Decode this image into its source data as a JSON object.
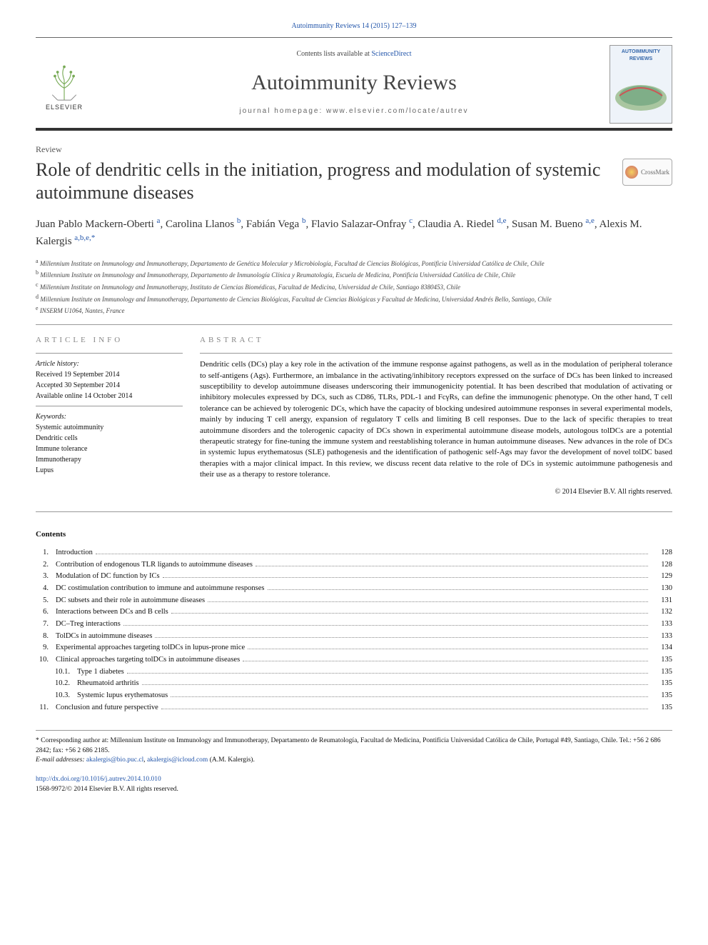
{
  "header": {
    "top_citation": "Autoimmunity Reviews 14 (2015) 127–139",
    "contents_available": "Contents lists available at ",
    "contents_link": "ScienceDirect",
    "journal": "Autoimmunity Reviews",
    "homepage_label": "journal homepage: www.elsevier.com/locate/autrev",
    "publisher_label": "ELSEVIER",
    "cover_thumb_title": "AUTOIMMUNITY REVIEWS"
  },
  "article": {
    "type": "Review",
    "title": "Role of dendritic cells in the initiation, progress and modulation of systemic autoimmune diseases",
    "crossmark_label": "CrossMark"
  },
  "authors_line_html": "Juan Pablo Mackern-Oberti <span class='aff'>a</span>, Carolina Llanos <span class='aff'>b</span>, Fabián Vega <span class='aff'>b</span>, Flavio Salazar-Onfray <span class='aff'>c</span>, Claudia A. Riedel <span class='aff'>d,e</span>, Susan M. Bueno <span class='aff'>a,e</span>, Alexis M. Kalergis <span class='aff'>a,b,e,</span><span class='aff'>*</span>",
  "affiliations": [
    {
      "key": "a",
      "text": "Millennium Institute on Immunology and Immunotherapy, Departamento de Genética Molecular y Microbiología, Facultad de Ciencias Biológicas, Pontificia Universidad Católica de Chile, Chile"
    },
    {
      "key": "b",
      "text": "Millennium Institute on Immunology and Immunotherapy, Departamento de Inmunología Clínica y Reumatología, Escuela de Medicina, Pontificia Universidad Católica de Chile, Chile"
    },
    {
      "key": "c",
      "text": "Millennium Institute on Immunology and Immunotherapy, Instituto de Ciencias Biomédicas, Facultad de Medicina, Universidad de Chile, Santiago 8380453, Chile"
    },
    {
      "key": "d",
      "text": "Millennium Institute on Immunology and Immunotherapy, Departamento de Ciencias Biológicas, Facultad de Ciencias Biológicas y Facultad de Medicina, Universidad Andrés Bello, Santiago, Chile"
    },
    {
      "key": "e",
      "text": "INSERM U1064, Nantes, France"
    }
  ],
  "article_info": {
    "heading": "ARTICLE INFO",
    "history_label": "Article history:",
    "received": "Received 19 September 2014",
    "accepted": "Accepted 30 September 2014",
    "online": "Available online 14 October 2014",
    "keywords_label": "Keywords:",
    "keywords": [
      "Systemic autoimmunity",
      "Dendritic cells",
      "Immune tolerance",
      "Immunotherapy",
      "Lupus"
    ]
  },
  "abstract": {
    "heading": "ABSTRACT",
    "text": "Dendritic cells (DCs) play a key role in the activation of the immune response against pathogens, as well as in the modulation of peripheral tolerance to self-antigens (Ags). Furthermore, an imbalance in the activating/inhibitory receptors expressed on the surface of DCs has been linked to increased susceptibility to develop autoimmune diseases underscoring their immunogenicity potential. It has been described that modulation of activating or inhibitory molecules expressed by DCs, such as CD86, TLRs, PDL-1 and FcγRs, can define the immunogenic phenotype. On the other hand, T cell tolerance can be achieved by tolerogenic DCs, which have the capacity of blocking undesired autoimmune responses in several experimental models, mainly by inducing T cell anergy, expansion of regulatory T cells and limiting B cell responses. Due to the lack of specific therapies to treat autoimmune disorders and the tolerogenic capacity of DCs shown in experimental autoimmune disease models, autologous tolDCs are a potential therapeutic strategy for fine-tuning the immune system and reestablishing tolerance in human autoimmune diseases. New advances in the role of DCs in systemic lupus erythematosus (SLE) pathogenesis and the identification of pathogenic self-Ags may favor the development of novel tolDC based therapies with a major clinical impact. In this review, we discuss recent data relative to the role of DCs in systemic autoimmune pathogenesis and their use as a therapy to restore tolerance.",
    "copyright": "© 2014 Elsevier B.V. All rights reserved."
  },
  "contents": {
    "label": "Contents",
    "items": [
      {
        "num": "1.",
        "title": "Introduction",
        "page": "128",
        "sub": false
      },
      {
        "num": "2.",
        "title": "Contribution of endogenous TLR ligands to autoimmune diseases",
        "page": "128",
        "sub": false
      },
      {
        "num": "3.",
        "title": "Modulation of DC function by ICs",
        "page": "129",
        "sub": false
      },
      {
        "num": "4.",
        "title": "DC costimulation contribution to immune and autoimmune responses",
        "page": "130",
        "sub": false
      },
      {
        "num": "5.",
        "title": "DC subsets and their role in autoimmune diseases",
        "page": "131",
        "sub": false
      },
      {
        "num": "6.",
        "title": "Interactions between DCs and B cells",
        "page": "132",
        "sub": false
      },
      {
        "num": "7.",
        "title": "DC–Treg interactions",
        "page": "133",
        "sub": false
      },
      {
        "num": "8.",
        "title": "TolDCs in autoimmune diseases",
        "page": "133",
        "sub": false
      },
      {
        "num": "9.",
        "title": "Experimental approaches targeting tolDCs in lupus-prone mice",
        "page": "134",
        "sub": false
      },
      {
        "num": "10.",
        "title": "Clinical approaches targeting tolDCs in autoimmune diseases",
        "page": "135",
        "sub": false
      },
      {
        "num": "10.1.",
        "title": "Type 1 diabetes",
        "page": "135",
        "sub": true
      },
      {
        "num": "10.2.",
        "title": "Rheumatoid arthritis",
        "page": "135",
        "sub": true
      },
      {
        "num": "10.3.",
        "title": "Systemic lupus erythematosus",
        "page": "135",
        "sub": true
      },
      {
        "num": "11.",
        "title": "Conclusion and future perspective",
        "page": "135",
        "sub": false
      }
    ]
  },
  "footnote": {
    "corresponding": "* Corresponding author at: Millennium Institute on Immunology and Immunotherapy, Departamento de Reumatología, Facultad de Medicina, Pontificia Universidad Católica de Chile, Portugal #49, Santiago, Chile. Tel.: +56 2 686 2842; fax: +56 2 686 2185.",
    "email_label": "E-mail addresses: ",
    "email1": "akalergis@bio.puc.cl",
    "email_sep": ", ",
    "email2": "akalergis@icloud.com",
    "email_trail": " (A.M. Kalergis)."
  },
  "doi": {
    "link": "http://dx.doi.org/10.1016/j.autrev.2014.10.010",
    "issn_line": "1568-9972/© 2014 Elsevier B.V. All rights reserved."
  },
  "colors": {
    "link": "#2255aa",
    "text": "#111111",
    "muted": "#888888",
    "rule": "#999999"
  }
}
